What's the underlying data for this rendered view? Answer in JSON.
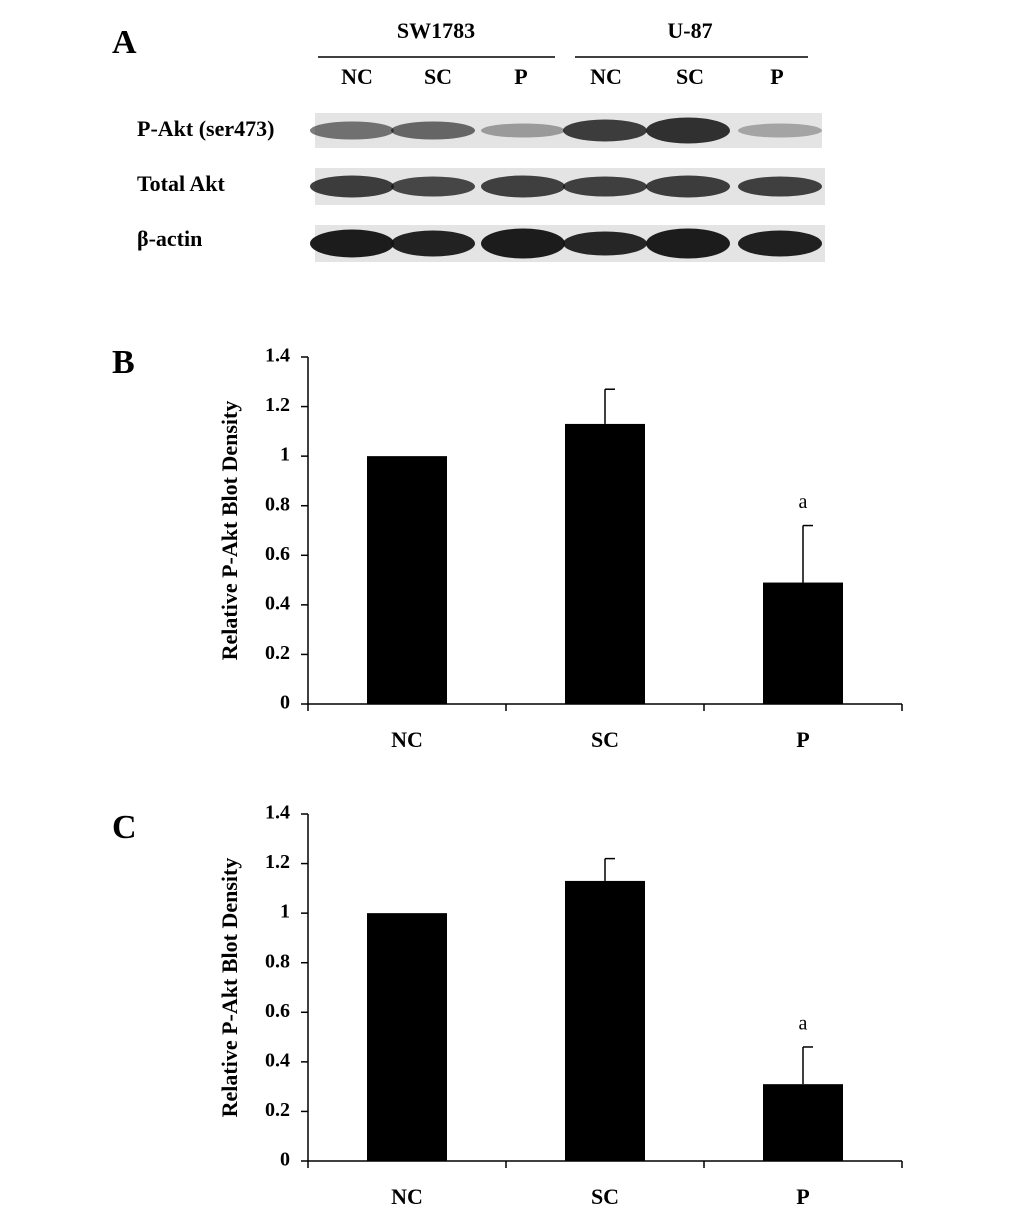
{
  "blot": {
    "panel_label": "A",
    "groups": [
      {
        "name": "SW1783",
        "lanes": [
          "NC",
          "SC",
          "P"
        ]
      },
      {
        "name": "U-87",
        "lanes": [
          "NC",
          "SC",
          "P"
        ]
      }
    ],
    "rows": [
      "P-Akt (ser473)",
      "Total Akt",
      "β-actin"
    ]
  },
  "chart_data": [
    {
      "type": "bar",
      "panel_label": "B",
      "y_label": "Relative P-Akt Blot Density",
      "categories": [
        "NC",
        "SC",
        "P"
      ],
      "values": [
        1,
        1.13,
        0.49
      ],
      "errors": [
        null,
        0.14,
        0.23
      ],
      "annotations": [
        null,
        null,
        "a"
      ],
      "color": "#000000",
      "ylim": [
        0,
        1.4
      ],
      "yticks": [
        0,
        0.2,
        0.4,
        0.6,
        0.8,
        1,
        1.2,
        1.4
      ]
    },
    {
      "type": "bar",
      "panel_label": "C",
      "y_label": "Relative P-Akt Blot Density",
      "categories": [
        "NC",
        "SC",
        "P"
      ],
      "values": [
        1,
        1.13,
        0.31
      ],
      "errors": [
        null,
        0.09,
        0.15
      ],
      "annotations": [
        null,
        null,
        "a"
      ],
      "color": "#000000",
      "ylim": [
        0,
        1.4
      ],
      "yticks": [
        0,
        0.2,
        0.4,
        0.6,
        0.8,
        1,
        1.2,
        1.4
      ]
    }
  ]
}
